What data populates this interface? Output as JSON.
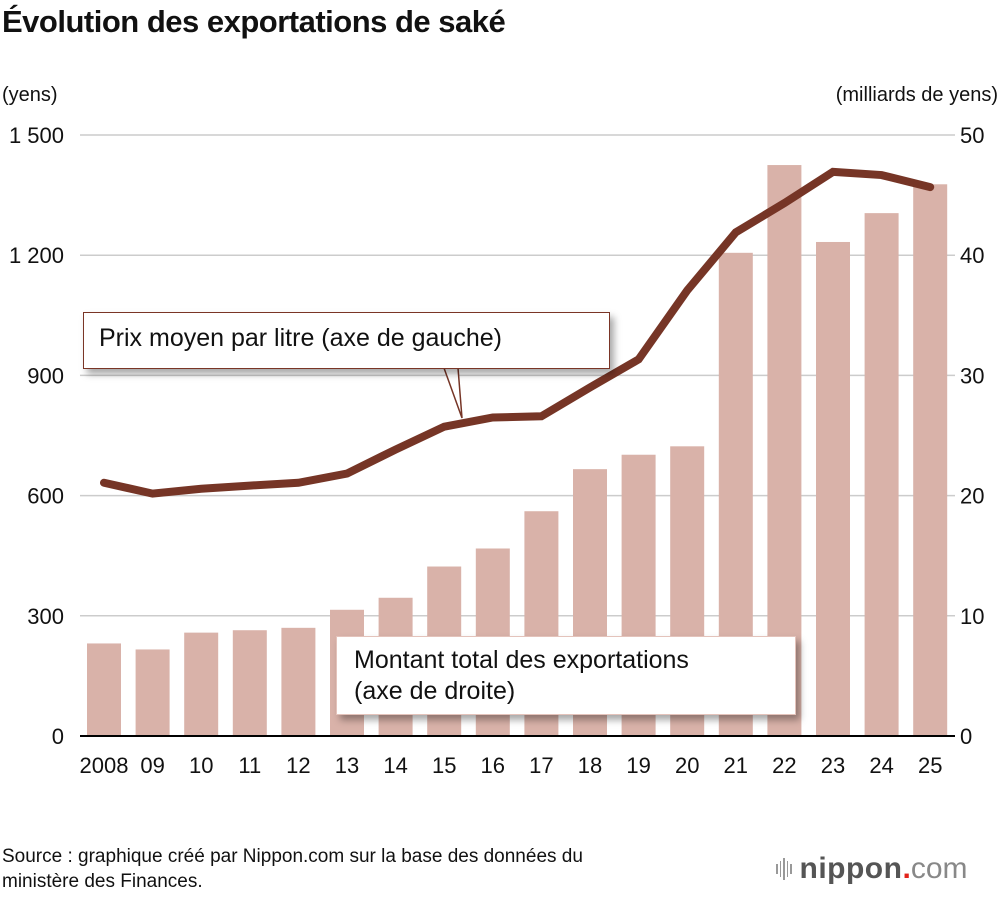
{
  "title": "Évolution des exportations de saké",
  "axis_units": {
    "left": "(yens)",
    "right": "(milliards de yens)"
  },
  "callouts": {
    "price": "Prix moyen par litre (axe de gauche)",
    "amount_line1": "Montant total des exportations",
    "amount_line2": "(axe de droite)"
  },
  "footer": {
    "source_line1": "Source : graphique créé par Nippon.com sur la base des données du",
    "source_line2": "ministère des Finances.",
    "logo_brand": "nippon",
    "logo_dot": ".",
    "logo_tld": "com"
  },
  "colors": {
    "bar": "#d9b2a9",
    "line": "#763526",
    "grid": "#cccccc",
    "axis": "#000000",
    "logo_dot": "#e2231a"
  },
  "chart_data": {
    "type": "bar+line",
    "title": "Évolution des exportations de saké",
    "xlabel": "",
    "categories": [
      "2008",
      "09",
      "10",
      "11",
      "12",
      "13",
      "14",
      "15",
      "16",
      "17",
      "18",
      "19",
      "20",
      "21",
      "22",
      "23",
      "24",
      "25"
    ],
    "series": [
      {
        "name": "Montant total des exportations (axe de droite)",
        "type": "bar",
        "axis": "right",
        "unit": "milliards de yens",
        "values": [
          7.7,
          7.2,
          8.6,
          8.8,
          9.0,
          10.5,
          11.5,
          14.1,
          15.6,
          18.7,
          22.2,
          23.4,
          24.1,
          40.2,
          47.5,
          41.1,
          43.5,
          45.9
        ]
      },
      {
        "name": "Prix moyen par litre (axe de gauche)",
        "type": "line",
        "axis": "left",
        "unit": "yens",
        "values": [
          632,
          605,
          617,
          625,
          632,
          655,
          715,
          772,
          795,
          798,
          870,
          940,
          1112,
          1257,
          1330,
          1408,
          1400,
          1370
        ]
      }
    ],
    "left_axis": {
      "label": "(yens)",
      "range": [
        0,
        1500
      ],
      "ticks": [
        0,
        300,
        600,
        900,
        1200,
        1500
      ],
      "tick_labels": [
        "0",
        "300",
        "600",
        "900",
        "1 200",
        "1 500"
      ]
    },
    "right_axis": {
      "label": "(milliards de yens)",
      "range": [
        0,
        50
      ],
      "ticks": [
        0,
        10,
        20,
        30,
        40,
        50
      ],
      "tick_labels": [
        "0",
        "10",
        "20",
        "30",
        "40",
        "50"
      ]
    },
    "grid": true,
    "legend": "callout labels"
  }
}
